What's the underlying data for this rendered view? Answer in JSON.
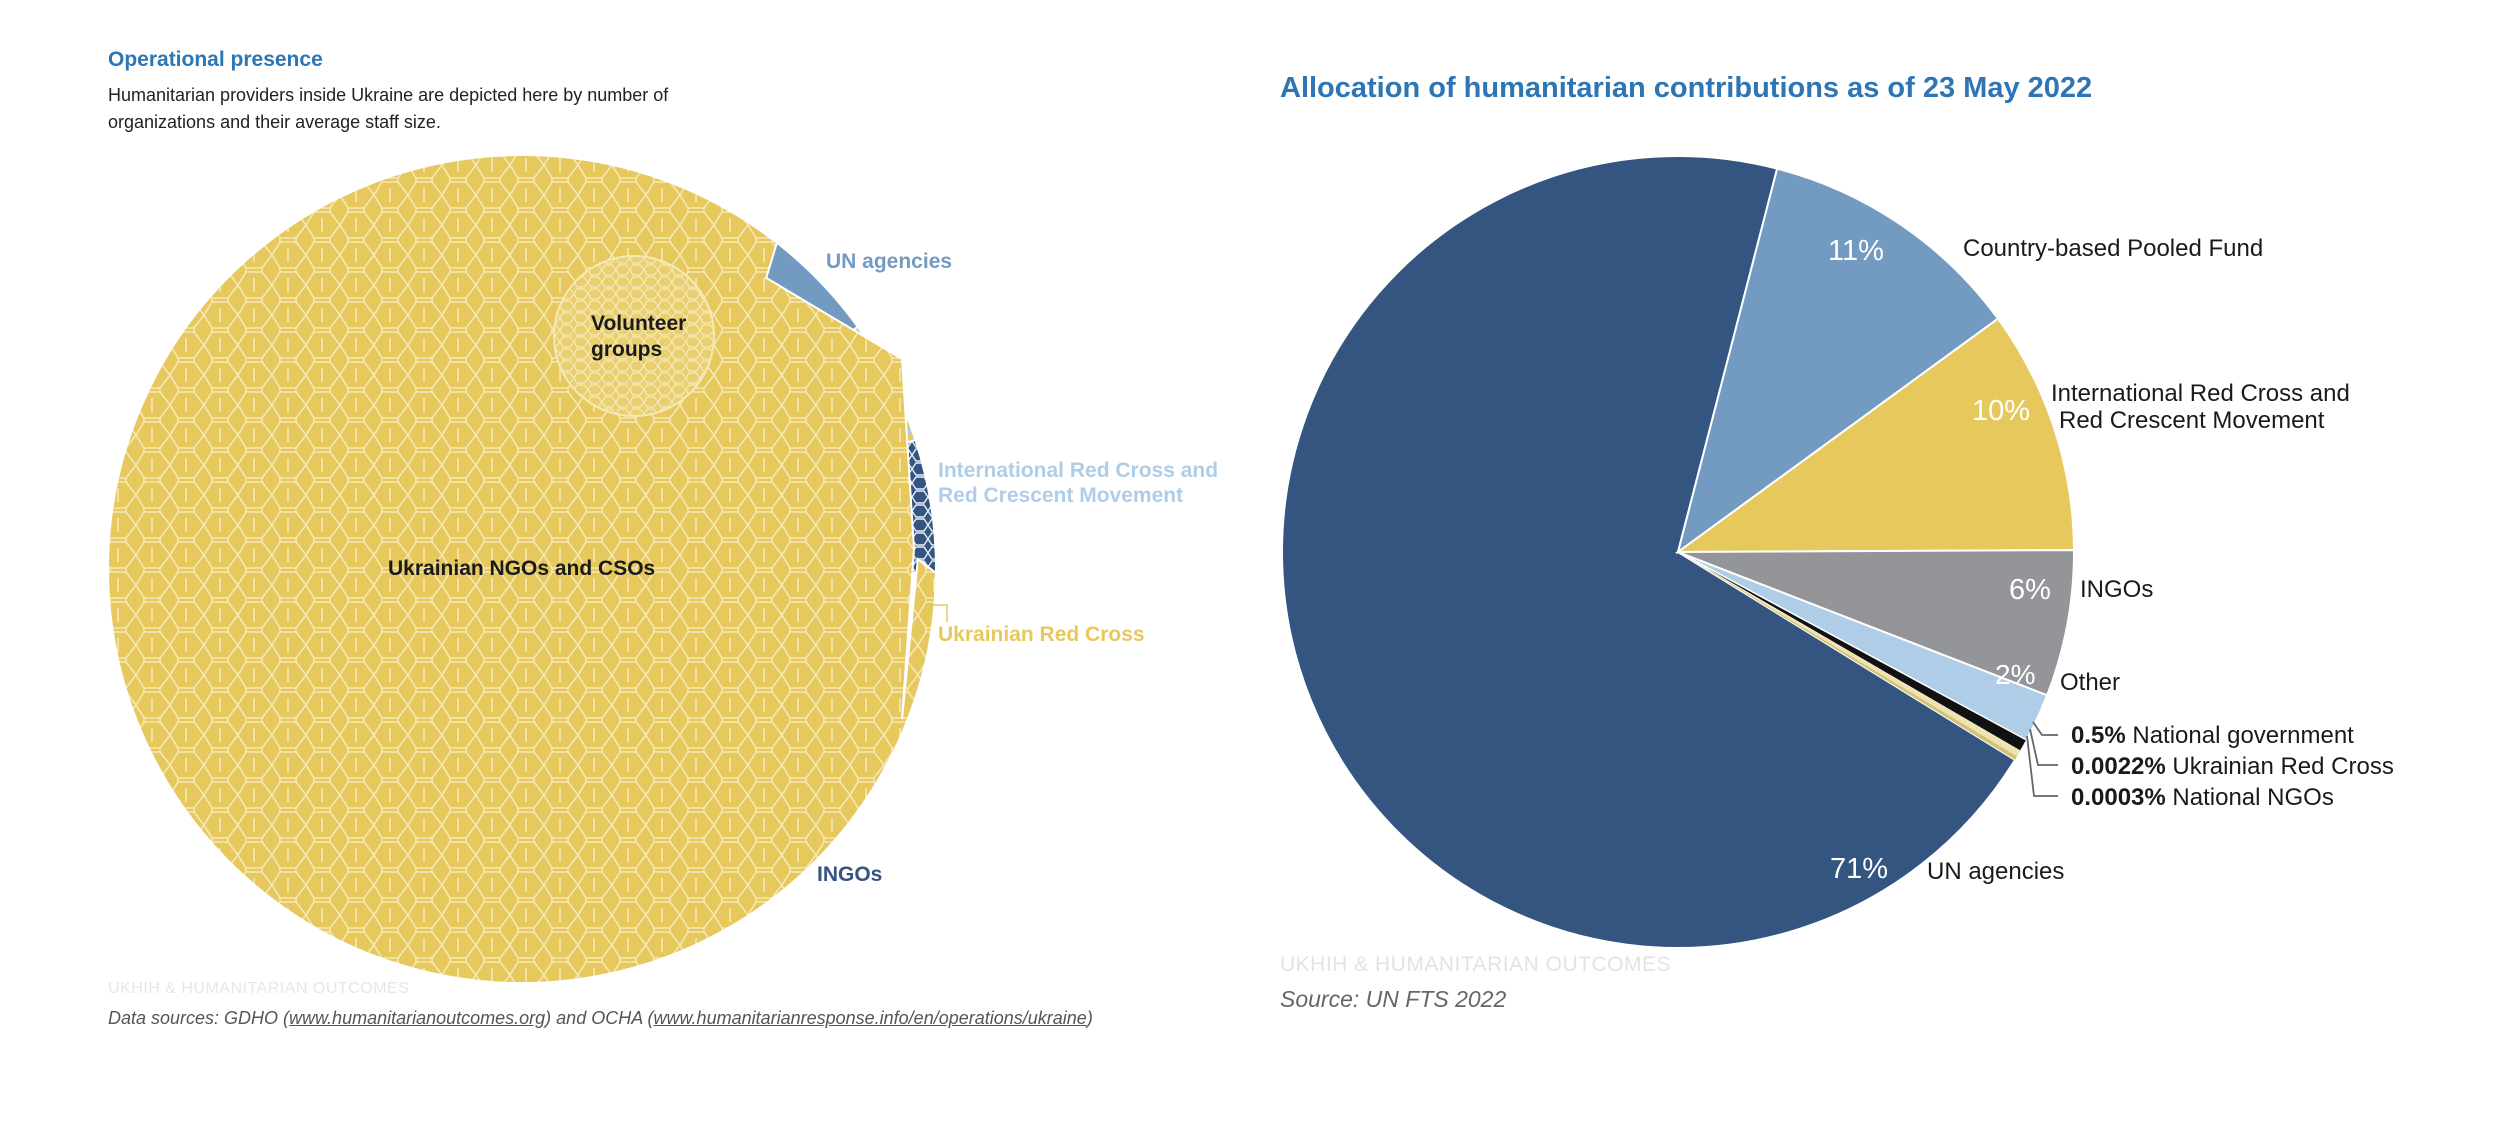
{
  "operational_presence": {
    "title": "Operational presence",
    "description": "Humanitarian providers inside Ukraine are depicted here by number of organizations and their average staff size.",
    "footer": "UKHIH & HUMANITARIAN OUTCOMES",
    "sources_prefix": "Data sources: GDHO (",
    "sources_link1": "www.humanitarianoutcomes.org",
    "sources_mid": ") and OCHA (",
    "sources_link2": "www.humanitarianresponse.info/en/operations/ukraine",
    "sources_suffix": ")",
    "labels": {
      "un_agencies": "UN agencies",
      "red_cross_line1": "International Red Cross and",
      "red_cross_line2": "Red Crescent Movement",
      "ukrainian_red_cross": "Ukrainian Red Cross",
      "ingos": "INGOs",
      "volunteer_line1": "Volunteer",
      "volunteer_line2": "groups",
      "ngos_csos": "Ukrainian NGOs and CSOs"
    }
  },
  "allocation": {
    "title": "Allocation of humanitarian contributions as of 23 May 2022",
    "footer": "UKHIH & HUMANITARIAN OUTCOMES",
    "source": "Source: UN FTS 2022"
  },
  "colors": {
    "un_dark": "#355581",
    "un_mid": "#739bc1",
    "yellow": "#e6c85c",
    "gray": "#939598",
    "light_blue": "#afcde6",
    "black": "#111111",
    "cream": "#efe3b0",
    "title_blue": "#2e75b6"
  },
  "chart_data": [
    {
      "type": "pie",
      "title": "Operational presence",
      "subtitle": "Humanitarian providers inside Ukraine are depicted here by number of organizations and their average staff size.",
      "series": [
        {
          "name": "Ukrainian NGOs and CSOs",
          "share": 0.894
        },
        {
          "name": "UN agencies",
          "share": 0.045
        },
        {
          "name": "International Red Cross and Red Crescent Movement",
          "share": 0.014
        },
        {
          "name": "Ukrainian Red Cross",
          "share": 0.035
        },
        {
          "name": "INGOs",
          "share": 0.052
        },
        {
          "name": "Volunteer groups",
          "share": 0.04
        }
      ]
    },
    {
      "type": "pie",
      "title": "Allocation of humanitarian contributions as of 23 May 2022",
      "slices": [
        {
          "name": "UN agencies",
          "value": 71,
          "label": "71%",
          "color": "#355581"
        },
        {
          "name": "Country-based Pooled Fund",
          "value": 11,
          "label": "11%",
          "color": "#739bc1"
        },
        {
          "name": "International Red Cross and Red Crescent Movement",
          "value": 10,
          "label": "10%",
          "color": "#e6c85c"
        },
        {
          "name": "INGOs",
          "value": 6,
          "label": "6%",
          "color": "#939598"
        },
        {
          "name": "Other",
          "value": 2,
          "label": "2%",
          "color": "#afcde6"
        },
        {
          "name": "National government",
          "value": 0.5,
          "label": "0.5%",
          "color": "#111111"
        },
        {
          "name": "Ukrainian Red Cross",
          "value": 0.0022,
          "label": "0.0022%",
          "color": "#efe3b0"
        },
        {
          "name": "National NGOs",
          "value": 0.0003,
          "label": "0.0003%",
          "color": "#d4c27a"
        }
      ]
    }
  ]
}
